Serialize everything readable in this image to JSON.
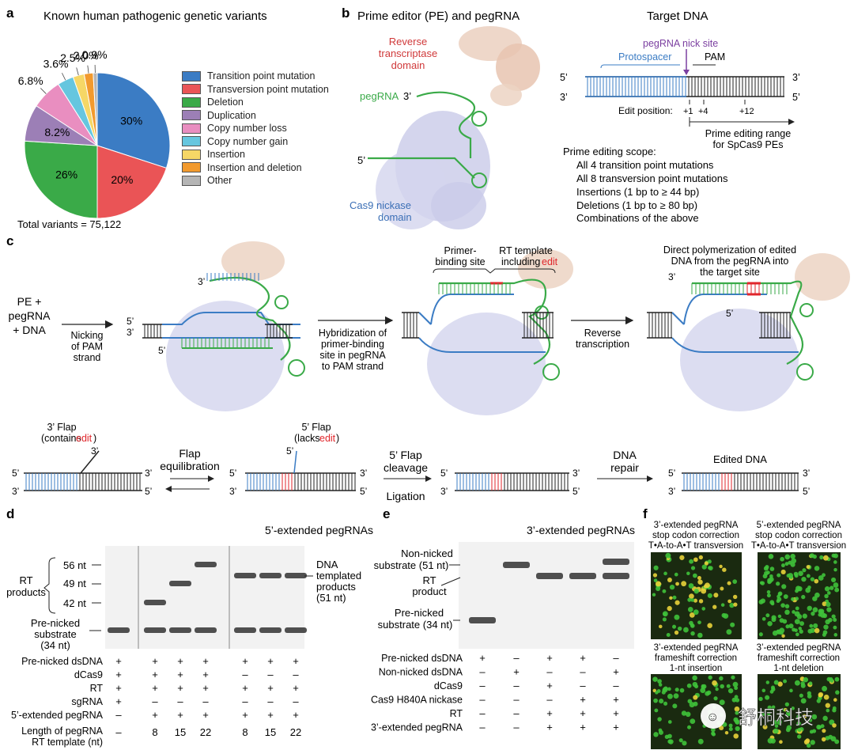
{
  "panel_a": {
    "label": "a",
    "title": "Known human pathogenic genetic variants",
    "total": "Total variants = 75,122",
    "chart_data": {
      "type": "pie",
      "title": "Known human pathogenic genetic variants",
      "labels": [
        "Transition point mutation",
        "Transversion point mutation",
        "Deletion",
        "Duplication",
        "Copy number loss",
        "Copy number gain",
        "Insertion",
        "Insertion and deletion",
        "Other"
      ],
      "values": [
        30,
        20,
        26,
        8.2,
        6.8,
        3.6,
        2.5,
        2.0,
        0.9
      ],
      "value_labels": [
        "30%",
        "20%",
        "26%",
        "8.2%",
        "6.8%",
        "3.6%",
        "2.5%",
        "2.0%",
        "0.9%"
      ],
      "colors": [
        "#3b7cc4",
        "#ea5456",
        "#3aaa48",
        "#9c7fb6",
        "#e98ec0",
        "#66c6df",
        "#f6d766",
        "#f29a2e",
        "#b5b5b5"
      ],
      "legend_position": "right"
    }
  },
  "panel_b": {
    "label": "b",
    "title": "Prime editor (PE) and pegRNA",
    "rt_domain": [
      "Reverse",
      "transcriptase",
      "domain"
    ],
    "pegrna": "pegRNA",
    "three_prime": "3’",
    "five_prime": "5’",
    "cas9_domain": [
      "Cas9 nickase",
      "domain"
    ],
    "target_title": "Target DNA",
    "nick_site": "pegRNA nick site",
    "protospacer": "Protospacer",
    "pam": "PAM",
    "strand_top_5": "5’",
    "strand_top_3": "3’",
    "strand_bot_3": "3’",
    "strand_bot_5": "5’",
    "edit_position": "Edit position:",
    "pos1": "+1",
    "pos4": "+4",
    "pos12": "+12",
    "range": [
      "Prime editing range",
      "for SpCas9 PEs"
    ],
    "scope_title": "Prime editing scope:",
    "scope": [
      "All 4 transition point mutations",
      "All 8 transversion point mutations",
      "Insertions (1 bp to ≥ 44 bp)",
      "Deletions (1 bp to ≥ 80 bp)",
      "Combinations of the above"
    ]
  },
  "panel_c": {
    "label": "c",
    "start": [
      "PE +",
      "pegRNA",
      "+ DNA"
    ],
    "step1": [
      "Nicking",
      "of PAM",
      "strand"
    ],
    "step2": [
      "Hybridization of",
      "primer-binding",
      "site in pegRNA",
      "to PAM strand"
    ],
    "pbs": [
      "Primer-",
      "binding site"
    ],
    "rt_tmpl": "RT template",
    "including": "including",
    "edit": "edit",
    "step3": [
      "Reverse",
      "transcription"
    ],
    "direct": [
      "Direct polymerization of edited",
      "DNA from the pegRNA into",
      "the target site"
    ],
    "flap3": "3’ Flap",
    "contains": "(contains",
    "flap5": "5’ Flap",
    "lacks": "(lacks",
    "close": ")",
    "equil": [
      "Flap",
      "equilibration"
    ],
    "cleave": [
      "5’ Flap",
      "cleavage"
    ],
    "ligation": "Ligation",
    "repair": [
      "DNA",
      "repair"
    ],
    "edited": "Edited DNA",
    "p5": "5’",
    "p3": "3’"
  },
  "panel_d": {
    "label": "d",
    "title": "5’-extended pegRNAs",
    "rt_products": [
      "RT",
      "products"
    ],
    "m56": "56 nt",
    "m49": "49 nt",
    "m42": "42 nt",
    "prenicked": [
      "Pre-nicked",
      "substrate",
      "(34 nt)"
    ],
    "dna_templated": [
      "DNA",
      "templated",
      "products",
      "(51 nt)"
    ],
    "rows": [
      {
        "name": "Pre-nicked dsDNA",
        "vals": [
          "+",
          "+",
          "+",
          "+",
          "+",
          "+",
          "+"
        ]
      },
      {
        "name": "dCas9",
        "vals": [
          "+",
          "+",
          "+",
          "+",
          "–",
          "–",
          "–"
        ]
      },
      {
        "name": "RT",
        "vals": [
          "+",
          "+",
          "+",
          "+",
          "+",
          "+",
          "+"
        ]
      },
      {
        "name": "sgRNA",
        "vals": [
          "+",
          "–",
          "–",
          "–",
          "–",
          "–",
          "–"
        ]
      },
      {
        "name": "5’-extended pegRNA",
        "vals": [
          "–",
          "+",
          "+",
          "+",
          "+",
          "+",
          "+"
        ]
      }
    ],
    "length_label": [
      "Length of pegRNA",
      "RT template (nt)"
    ],
    "lengths": [
      "–",
      "8",
      "15",
      "22",
      "8",
      "15",
      "22"
    ]
  },
  "panel_e": {
    "label": "e",
    "title": "3’-extended pegRNAs",
    "nonnicked": [
      "Non-nicked",
      "substrate (51 nt)"
    ],
    "rt_product": [
      "RT",
      "product"
    ],
    "prenicked": [
      "Pre-nicked",
      "substrate (34 nt)"
    ],
    "rows": [
      {
        "name": "Pre-nicked dsDNA",
        "vals": [
          "+",
          "–",
          "+",
          "+",
          "–"
        ]
      },
      {
        "name": "Non-nicked dsDNA",
        "vals": [
          "–",
          "+",
          "–",
          "–",
          "+"
        ]
      },
      {
        "name": "dCas9",
        "vals": [
          "–",
          "–",
          "+",
          "–",
          "–"
        ]
      },
      {
        "name": "Cas9 H840A nickase",
        "vals": [
          "–",
          "–",
          "–",
          "+",
          "+"
        ]
      },
      {
        "name": "RT",
        "vals": [
          "–",
          "–",
          "+",
          "+",
          "+"
        ]
      },
      {
        "name": "3’-extended pegRNA",
        "vals": [
          "–",
          "–",
          "+",
          "+",
          "+"
        ]
      }
    ]
  },
  "panel_f": {
    "label": "f",
    "img1": [
      "3’-extended pegRNA",
      "stop codon correction",
      "T•A-to-A•T transversion"
    ],
    "img2": [
      "5’-extended pegRNA",
      "stop codon correction",
      "T•A-to-A•T transversion"
    ],
    "img3": [
      "3’-extended pegRNA",
      "frameshift correction",
      "1-nt insertion"
    ],
    "img4": [
      "3’-extended pegRNA",
      "frameshift correction",
      "1-nt deletion"
    ]
  },
  "watermark": "舒桐科技",
  "colors": {
    "blue": "#3b7cc4",
    "green": "#3aaa48",
    "red": "#e0262b",
    "purple": "#7b3fa0",
    "protein": "#c9cbe8",
    "rt": "#e8c4b0",
    "dna_blue": "#4a90c8"
  }
}
